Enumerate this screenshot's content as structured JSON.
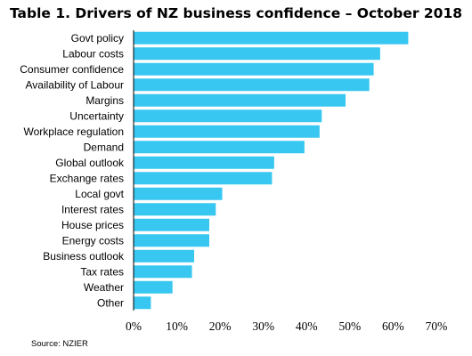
{
  "chart_data": {
    "type": "bar",
    "orientation": "horizontal",
    "title": "Table 1. Drivers of NZ business confidence – October 2018",
    "categories": [
      "Govt policy",
      "Labour costs",
      "Consumer confidence",
      "Availability of Labour",
      "Margins",
      "Uncertainty",
      "Workplace regulation",
      "Demand",
      "Global outlook",
      "Exchange rates",
      "Local govt",
      "Interest rates",
      "House prices",
      "Energy costs",
      "Business outlook",
      "Tax rates",
      "Weather",
      "Other"
    ],
    "values": [
      63.5,
      57,
      55.5,
      54.5,
      49,
      43.5,
      43,
      39.5,
      32.5,
      32,
      20.5,
      19,
      17.5,
      17.5,
      14,
      13.5,
      9,
      4
    ],
    "xlim": [
      0,
      70
    ],
    "x_ticks": [
      "0%",
      "10%",
      "20%",
      "30%",
      "40%",
      "50%",
      "60%",
      "70%"
    ],
    "xlabel": "",
    "ylabel": "",
    "bar_color": "#38c7f0",
    "grid": false,
    "legend": "none",
    "source": "Source: NZIER"
  }
}
